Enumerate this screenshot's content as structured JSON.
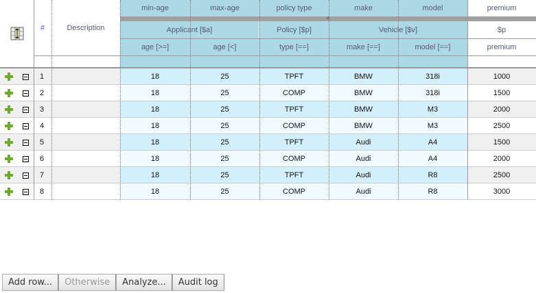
{
  "header": {
    "row_number_label": "#",
    "description_label": "Description",
    "columns": [
      {
        "name": "min-age",
        "group": "Applicant [$a]",
        "constraint": "age [>=]"
      },
      {
        "name": "max-age",
        "group": "Applicant [$a]",
        "constraint": "age [<]"
      },
      {
        "name": "policy type",
        "group": "Policy [$p]",
        "constraint": "type [==]"
      },
      {
        "name": "make",
        "group": "Vehicle [$v]",
        "constraint": "make [==]"
      },
      {
        "name": "model",
        "group": "Vehicle [$v]",
        "constraint": "model [==]"
      },
      {
        "name": "premium",
        "group": "$p",
        "constraint": "premium"
      }
    ],
    "groups": [
      "Applicant [$a]",
      "Policy [$p]",
      "Vehicle [$v]",
      "$p"
    ]
  },
  "rows": [
    {
      "num": "1",
      "description": "",
      "cells": [
        "18",
        "25",
        "TPFT",
        "BMW",
        "318i",
        "1000"
      ]
    },
    {
      "num": "2",
      "description": "",
      "cells": [
        "18",
        "25",
        "COMP",
        "BMW",
        "318i",
        "1500"
      ]
    },
    {
      "num": "3",
      "description": "",
      "cells": [
        "18",
        "25",
        "TPFT",
        "BMW",
        "M3",
        "2000"
      ]
    },
    {
      "num": "4",
      "description": "",
      "cells": [
        "18",
        "25",
        "COMP",
        "BMW",
        "M3",
        "2500"
      ]
    },
    {
      "num": "5",
      "description": "",
      "cells": [
        "18",
        "25",
        "TPFT",
        "Audi",
        "A4",
        "1500"
      ]
    },
    {
      "num": "6",
      "description": "",
      "cells": [
        "18",
        "25",
        "COMP",
        "Audi",
        "A4",
        "2000"
      ]
    },
    {
      "num": "7",
      "description": "",
      "cells": [
        "18",
        "25",
        "TPFT",
        "Audi",
        "R8",
        "2500"
      ]
    },
    {
      "num": "8",
      "description": "",
      "cells": [
        "18",
        "25",
        "COMP",
        "Audi",
        "R8",
        "3000"
      ]
    }
  ],
  "buttons": {
    "add_row": "Add row...",
    "otherwise": "Otherwise",
    "analyze": "Analyze...",
    "audit_log": "Audit log"
  },
  "colors": {
    "header": "#add8e6",
    "row_odd": "#d3effc",
    "row_even": "#f0fbff",
    "action_odd": "#f0f0f0",
    "plus": "#6cab2c"
  }
}
